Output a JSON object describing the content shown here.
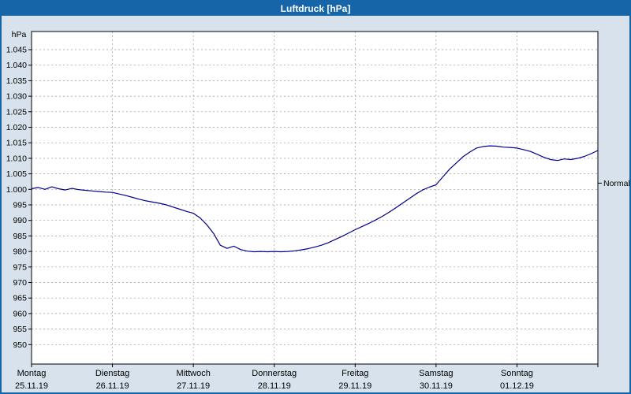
{
  "window": {
    "title": "Luftdruck [hPa]"
  },
  "colors": {
    "titlebar_bg": "#1565a8",
    "window_border": "#1565a8",
    "window_bg": "#d8e2ec",
    "plot_bg": "#ffffff",
    "plot_border": "#000000",
    "gridline": "#9a9a9a",
    "line_color": "#00008b",
    "label_color": "#000000"
  },
  "chart_data": {
    "type": "line",
    "title": "Luftdruck [hPa]",
    "y_unit_label": "hPa",
    "y_ticks": [
      950,
      955,
      960,
      965,
      970,
      975,
      980,
      985,
      990,
      995,
      1000,
      1005,
      1010,
      1015,
      1020,
      1025,
      1030,
      1035,
      1040,
      1045
    ],
    "y_tick_format": "de-thousands-dot",
    "ylim": [
      944,
      1050
    ],
    "grid": "dashed",
    "x_axis": {
      "start_hour": 0,
      "step_hours": 2,
      "total_hours": 168,
      "days": [
        {
          "day": "Montag",
          "date": "25.11.19"
        },
        {
          "day": "Dienstag",
          "date": "26.11.19"
        },
        {
          "day": "Mittwoch",
          "date": "27.11.19"
        },
        {
          "day": "Donnerstag",
          "date": "28.11.19"
        },
        {
          "day": "Freitag",
          "date": "29.11.19"
        },
        {
          "day": "Samstag",
          "date": "30.11.19"
        },
        {
          "day": "Sonntag",
          "date": "01.12.19"
        }
      ]
    },
    "series": [
      {
        "name": "Luftdruck",
        "color": "#00008b",
        "values": [
          1000.2,
          1000.6,
          1000.0,
          1000.8,
          1000.2,
          999.8,
          1000.3,
          999.9,
          999.7,
          999.5,
          999.3,
          999.1,
          999.0,
          998.5,
          998.0,
          997.4,
          996.8,
          996.3,
          995.9,
          995.5,
          995.0,
          994.3,
          993.6,
          992.9,
          992.3,
          990.8,
          988.6,
          985.8,
          982.0,
          981.0,
          981.7,
          980.6,
          980.1,
          979.9,
          980.0,
          979.9,
          980.0,
          979.9,
          980.0,
          980.2,
          980.5,
          980.9,
          981.4,
          982.0,
          982.8,
          983.8,
          984.8,
          985.9,
          987.0,
          988.0,
          989.0,
          990.1,
          991.3,
          992.6,
          994.0,
          995.5,
          997.0,
          998.5,
          999.8,
          1000.7,
          1001.5,
          1004.0,
          1006.5,
          1008.5,
          1010.5,
          1012.0,
          1013.3,
          1013.8,
          1014.0,
          1013.9,
          1013.6,
          1013.5,
          1013.3,
          1012.8,
          1012.2,
          1011.3,
          1010.3,
          1009.6,
          1009.3,
          1009.8,
          1009.6,
          1010.0,
          1010.6,
          1011.5,
          1012.5
        ]
      }
    ],
    "annotations": [
      {
        "label": "Normal",
        "value": 1002,
        "position": "right"
      }
    ],
    "legend_position": "none"
  }
}
